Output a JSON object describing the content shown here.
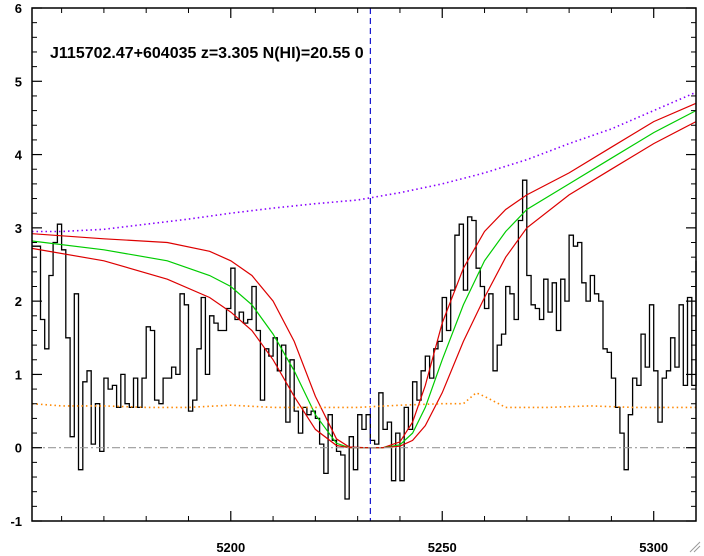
{
  "chart_data": {
    "type": "line",
    "title": "J115702.47+604035 z=3.305 N(HI)=20.55 0",
    "xlabel": "",
    "ylabel": "",
    "xlim": [
      5153,
      5310
    ],
    "ylim": [
      -1,
      6
    ],
    "x_ticks": [
      5200,
      5250,
      5300
    ],
    "y_ticks": [
      -1,
      0,
      1,
      2,
      3,
      4,
      5,
      6
    ],
    "grid": false,
    "reference_lines": [
      {
        "name": "zero-level",
        "axis": "y",
        "value": 0,
        "color": "#999999",
        "style": "dash-dot"
      },
      {
        "name": "line-center",
        "axis": "x",
        "value": 5233,
        "color": "#0000cc",
        "style": "dashed"
      }
    ],
    "series": [
      {
        "style": "step",
        "color": "#000000",
        "points": [
          [
            5153,
            2.75
          ],
          [
            5154,
            2.75
          ],
          [
            5155,
            1.75
          ],
          [
            5156,
            1.35
          ],
          [
            5157,
            2.35
          ],
          [
            5158,
            2.8
          ],
          [
            5159,
            3.05
          ],
          [
            5160,
            2.7
          ],
          [
            5161,
            1.5
          ],
          [
            5162,
            0.15
          ],
          [
            5163,
            2.1
          ],
          [
            5164,
            -0.3
          ],
          [
            5165,
            0.9
          ],
          [
            5166,
            1.05
          ],
          [
            5167,
            0.05
          ],
          [
            5168,
            0.6
          ],
          [
            5169,
            -0.05
          ],
          [
            5170,
            0.95
          ],
          [
            5171,
            0.8
          ],
          [
            5172,
            0.85
          ],
          [
            5173,
            0.55
          ],
          [
            5174,
            1.0
          ],
          [
            5175,
            0.6
          ],
          [
            5176,
            0.55
          ],
          [
            5177,
            0.95
          ],
          [
            5178,
            0.55
          ],
          [
            5179,
            0.95
          ],
          [
            5180,
            1.65
          ],
          [
            5181,
            1.6
          ],
          [
            5182,
            0.65
          ],
          [
            5183,
            0.6
          ],
          [
            5184,
            0.95
          ],
          [
            5185,
            0.95
          ],
          [
            5186,
            1.1
          ],
          [
            5187,
            1.0
          ],
          [
            5188,
            2.1
          ],
          [
            5189,
            1.95
          ],
          [
            5190,
            0.5
          ],
          [
            5191,
            0.65
          ],
          [
            5192,
            1.35
          ],
          [
            5193,
            2.05
          ],
          [
            5194,
            1.0
          ],
          [
            5195,
            1.8
          ],
          [
            5196,
            1.7
          ],
          [
            5197,
            1.6
          ],
          [
            5198,
            1.6
          ],
          [
            5199,
            1.9
          ],
          [
            5200,
            2.45
          ],
          [
            5201,
            1.75
          ],
          [
            5202,
            1.85
          ],
          [
            5203,
            1.7
          ],
          [
            5204,
            1.75
          ],
          [
            5205,
            2.2
          ],
          [
            5206,
            1.6
          ],
          [
            5207,
            0.65
          ],
          [
            5208,
            1.35
          ],
          [
            5209,
            1.25
          ],
          [
            5210,
            1.5
          ],
          [
            5211,
            1.05
          ],
          [
            5212,
            1.4
          ],
          [
            5213,
            0.35
          ],
          [
            5214,
            1.2
          ],
          [
            5215,
            0.5
          ],
          [
            5216,
            0.2
          ],
          [
            5217,
            0.55
          ],
          [
            5218,
            0.45
          ],
          [
            5219,
            0.5
          ],
          [
            5220,
            0.4
          ],
          [
            5221,
            0.05
          ],
          [
            5222,
            -0.35
          ],
          [
            5223,
            0.45
          ],
          [
            5224,
            0.1
          ],
          [
            5225,
            -0.05
          ],
          [
            5226,
            -0.1
          ],
          [
            5227,
            -0.7
          ],
          [
            5228,
            0.15
          ],
          [
            5229,
            -0.3
          ],
          [
            5230,
            0.45
          ],
          [
            5231,
            0.25
          ],
          [
            5232,
            0.45
          ],
          [
            5233,
            0.1
          ],
          [
            5234,
            0.05
          ],
          [
            5235,
            0.75
          ],
          [
            5236,
            0.25
          ],
          [
            5237,
            0.35
          ],
          [
            5238,
            -0.45
          ],
          [
            5239,
            0.2
          ],
          [
            5240,
            -0.45
          ],
          [
            5241,
            0.55
          ],
          [
            5242,
            0.25
          ],
          [
            5243,
            0.9
          ],
          [
            5244,
            0.65
          ],
          [
            5245,
            1.05
          ],
          [
            5246,
            1.25
          ],
          [
            5247,
            0.95
          ],
          [
            5248,
            1.35
          ],
          [
            5249,
            1.45
          ],
          [
            5250,
            2.05
          ],
          [
            5251,
            1.6
          ],
          [
            5252,
            2.15
          ],
          [
            5253,
            2.9
          ],
          [
            5254,
            3.05
          ],
          [
            5255,
            2.15
          ],
          [
            5256,
            3.15
          ],
          [
            5257,
            3.1
          ],
          [
            5258,
            2.45
          ],
          [
            5259,
            2.2
          ],
          [
            5260,
            1.9
          ],
          [
            5261,
            2.1
          ],
          [
            5262,
            1.05
          ],
          [
            5263,
            1.4
          ],
          [
            5264,
            1.55
          ],
          [
            5265,
            2.2
          ],
          [
            5266,
            2.1
          ],
          [
            5267,
            1.75
          ],
          [
            5268,
            3.1
          ],
          [
            5269,
            3.65
          ],
          [
            5270,
            2.35
          ],
          [
            5271,
            1.95
          ],
          [
            5272,
            1.9
          ],
          [
            5273,
            1.75
          ],
          [
            5274,
            2.3
          ],
          [
            5275,
            1.85
          ],
          [
            5276,
            2.25
          ],
          [
            5277,
            1.6
          ],
          [
            5278,
            2.3
          ],
          [
            5279,
            2.0
          ],
          [
            5280,
            2.9
          ],
          [
            5281,
            2.75
          ],
          [
            5282,
            2.8
          ],
          [
            5283,
            2.25
          ],
          [
            5284,
            2.0
          ],
          [
            5285,
            2.35
          ],
          [
            5286,
            2.1
          ],
          [
            5287,
            2.0
          ],
          [
            5288,
            1.35
          ],
          [
            5289,
            1.3
          ],
          [
            5290,
            0.95
          ],
          [
            5291,
            0.55
          ],
          [
            5292,
            0.2
          ],
          [
            5293,
            -0.3
          ],
          [
            5294,
            0.45
          ],
          [
            5295,
            0.95
          ],
          [
            5296,
            0.85
          ],
          [
            5297,
            1.55
          ],
          [
            5298,
            1.1
          ],
          [
            5299,
            1.95
          ],
          [
            5300,
            1.05
          ],
          [
            5301,
            0.35
          ],
          [
            5302,
            0.95
          ],
          [
            5303,
            1.05
          ],
          [
            5304,
            1.5
          ],
          [
            5305,
            1.1
          ],
          [
            5306,
            1.95
          ],
          [
            5307,
            0.85
          ],
          [
            5308,
            2.05
          ],
          [
            5309,
            0.85
          ],
          [
            5310,
            2.55
          ]
        ]
      },
      {
        "style": "smooth",
        "color": "#dd0000",
        "points": [
          [
            5153,
            2.92
          ],
          [
            5170,
            2.85
          ],
          [
            5185,
            2.8
          ],
          [
            5195,
            2.68
          ],
          [
            5200,
            2.55
          ],
          [
            5205,
            2.35
          ],
          [
            5210,
            2.0
          ],
          [
            5215,
            1.45
          ],
          [
            5220,
            0.7
          ],
          [
            5225,
            0.12
          ],
          [
            5228,
            0.01
          ],
          [
            5232,
            0.0
          ],
          [
            5236,
            0.0
          ],
          [
            5240,
            0.08
          ],
          [
            5243,
            0.35
          ],
          [
            5246,
            0.85
          ],
          [
            5250,
            1.7
          ],
          [
            5255,
            2.45
          ],
          [
            5260,
            2.95
          ],
          [
            5265,
            3.25
          ],
          [
            5270,
            3.45
          ],
          [
            5280,
            3.75
          ],
          [
            5290,
            4.1
          ],
          [
            5300,
            4.45
          ],
          [
            5310,
            4.7
          ]
        ]
      },
      {
        "style": "smooth",
        "color": "#00cc00",
        "points": [
          [
            5153,
            2.82
          ],
          [
            5170,
            2.7
          ],
          [
            5185,
            2.55
          ],
          [
            5195,
            2.35
          ],
          [
            5200,
            2.2
          ],
          [
            5205,
            1.95
          ],
          [
            5210,
            1.55
          ],
          [
            5215,
            1.05
          ],
          [
            5220,
            0.45
          ],
          [
            5225,
            0.06
          ],
          [
            5228,
            0.0
          ],
          [
            5232,
            0.0
          ],
          [
            5236,
            0.0
          ],
          [
            5240,
            0.04
          ],
          [
            5243,
            0.2
          ],
          [
            5246,
            0.55
          ],
          [
            5250,
            1.2
          ],
          [
            5255,
            1.95
          ],
          [
            5260,
            2.55
          ],
          [
            5265,
            2.95
          ],
          [
            5270,
            3.25
          ],
          [
            5280,
            3.6
          ],
          [
            5290,
            3.95
          ],
          [
            5300,
            4.3
          ],
          [
            5310,
            4.6
          ]
        ]
      },
      {
        "style": "smooth",
        "color": "#dd0000",
        "points": [
          [
            5153,
            2.72
          ],
          [
            5170,
            2.55
          ],
          [
            5185,
            2.3
          ],
          [
            5195,
            2.05
          ],
          [
            5200,
            1.85
          ],
          [
            5205,
            1.6
          ],
          [
            5210,
            1.2
          ],
          [
            5215,
            0.7
          ],
          [
            5220,
            0.25
          ],
          [
            5225,
            0.03
          ],
          [
            5228,
            0.0
          ],
          [
            5232,
            0.0
          ],
          [
            5236,
            0.0
          ],
          [
            5240,
            0.02
          ],
          [
            5243,
            0.1
          ],
          [
            5246,
            0.3
          ],
          [
            5250,
            0.75
          ],
          [
            5255,
            1.45
          ],
          [
            5260,
            2.05
          ],
          [
            5265,
            2.6
          ],
          [
            5270,
            3.0
          ],
          [
            5280,
            3.45
          ],
          [
            5290,
            3.8
          ],
          [
            5300,
            4.15
          ],
          [
            5310,
            4.45
          ]
        ]
      },
      {
        "style": "dotted",
        "color": "#8800ff",
        "points": [
          [
            5153,
            2.95
          ],
          [
            5160,
            2.95
          ],
          [
            5170,
            2.98
          ],
          [
            5180,
            3.05
          ],
          [
            5190,
            3.12
          ],
          [
            5200,
            3.2
          ],
          [
            5210,
            3.27
          ],
          [
            5220,
            3.33
          ],
          [
            5230,
            3.38
          ],
          [
            5240,
            3.48
          ],
          [
            5250,
            3.6
          ],
          [
            5260,
            3.75
          ],
          [
            5270,
            3.93
          ],
          [
            5280,
            4.15
          ],
          [
            5290,
            4.35
          ],
          [
            5300,
            4.6
          ],
          [
            5310,
            4.85
          ]
        ]
      },
      {
        "style": "dotted",
        "color": "#ff8800",
        "points": [
          [
            5153,
            0.6
          ],
          [
            5160,
            0.57
          ],
          [
            5170,
            0.57
          ],
          [
            5180,
            0.55
          ],
          [
            5190,
            0.55
          ],
          [
            5200,
            0.58
          ],
          [
            5210,
            0.55
          ],
          [
            5220,
            0.55
          ],
          [
            5230,
            0.55
          ],
          [
            5240,
            0.58
          ],
          [
            5250,
            0.6
          ],
          [
            5255,
            0.6
          ],
          [
            5258,
            0.75
          ],
          [
            5260,
            0.7
          ],
          [
            5265,
            0.55
          ],
          [
            5275,
            0.55
          ],
          [
            5285,
            0.57
          ],
          [
            5295,
            0.55
          ],
          [
            5300,
            0.55
          ],
          [
            5310,
            0.55
          ]
        ]
      }
    ]
  }
}
